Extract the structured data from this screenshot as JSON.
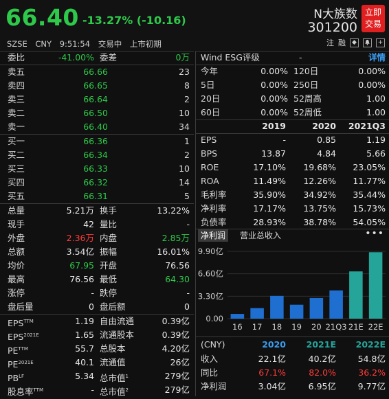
{
  "header": {
    "price": "66.40",
    "change": "-13.27% (-10.16)",
    "name": "N大族数",
    "code": "301200",
    "trade_btn": [
      "立即",
      "交易"
    ],
    "info": [
      "SZSE",
      "CNY",
      "9:51:54",
      "交易中",
      "上市初期"
    ],
    "tools": [
      "注",
      "融",
      "◆",
      "🔔",
      "+"
    ]
  },
  "left": {
    "weibi": {
      "label": "委比",
      "value": "-41.00%",
      "label2": "委差",
      "value2": "0万"
    },
    "asks": [
      {
        "label": "卖五",
        "price": "66.66",
        "vol": "23"
      },
      {
        "label": "卖四",
        "price": "66.65",
        "vol": "8"
      },
      {
        "label": "卖三",
        "price": "66.64",
        "vol": "2"
      },
      {
        "label": "卖二",
        "price": "66.50",
        "vol": "10"
      },
      {
        "label": "卖一",
        "price": "66.40",
        "vol": "34"
      }
    ],
    "bids": [
      {
        "label": "买一",
        "price": "66.36",
        "vol": "1"
      },
      {
        "label": "买二",
        "price": "66.34",
        "vol": "2"
      },
      {
        "label": "买三",
        "price": "66.33",
        "vol": "10"
      },
      {
        "label": "买四",
        "price": "66.32",
        "vol": "14"
      },
      {
        "label": "买五",
        "price": "66.31",
        "vol": "5"
      }
    ],
    "stats": [
      {
        "l1": "总量",
        "v1": "5.21万",
        "l2": "换手",
        "v2": "13.22%"
      },
      {
        "l1": "现手",
        "v1": "42",
        "l2": "量比",
        "v2": "-"
      },
      {
        "l1": "外盘",
        "v1": "2.36万",
        "l2": "内盘",
        "v2": "2.85万"
      },
      {
        "l1": "总额",
        "v1": "3.54亿",
        "l2": "振幅",
        "v2": "16.01%"
      },
      {
        "l1": "均价",
        "v1": "67.95",
        "l2": "开盘",
        "v2": "76.56"
      },
      {
        "l1": "最高",
        "v1": "76.56",
        "l2": "最低",
        "v2": "64.30"
      },
      {
        "l1": "涨停",
        "v1": "-",
        "l2": "跌停",
        "v2": "-"
      },
      {
        "l1": "盘后量",
        "v1": "0",
        "l2": "盘后额",
        "v2": "0"
      }
    ],
    "fundamentals": [
      {
        "l1": "EPS",
        "s1": "TTM",
        "v1": "1.19",
        "l2": "自由流通",
        "v2": "0.39亿"
      },
      {
        "l1": "EPS",
        "s1": "2021E",
        "v1": "1.65",
        "l2": "流通股本",
        "v2": "0.39亿"
      },
      {
        "l1": "PE",
        "s1": "TTM",
        "v1": "55.7",
        "l2": "总股本",
        "v2": "4.20亿"
      },
      {
        "l1": "PE",
        "s1": "2021E",
        "v1": "40.1",
        "l2": "流通值",
        "v2": "26亿"
      },
      {
        "l1": "PB",
        "s1": "LF",
        "v1": "5.34",
        "l2": "总市值",
        "s2": "1",
        "v2": "279亿"
      },
      {
        "l1": "股息率",
        "s1": "TTM",
        "v1": "-",
        "l2": "总市值",
        "s2": "2",
        "v2": "279亿"
      }
    ]
  },
  "right": {
    "esg": {
      "label": "Wind ESG评级",
      "value": "-",
      "detail": "详情"
    },
    "perf": [
      {
        "l1": "今年",
        "v1": "0.00%",
        "l2": "120日",
        "v2": "0.00%"
      },
      {
        "l1": "5日",
        "v1": "0.00%",
        "l2": "250日",
        "v2": "0.00%"
      },
      {
        "l1": "20日",
        "v1": "0.00%",
        "l2": "52周高",
        "v2": "1.00"
      },
      {
        "l1": "60日",
        "v1": "0.00%",
        "l2": "52周低",
        "v2": "1.00"
      }
    ],
    "fin_headers": [
      "2019",
      "2020",
      "2021Q3"
    ],
    "fin": [
      {
        "l": "EPS",
        "v": [
          "-",
          "0.85",
          "1.19"
        ]
      },
      {
        "l": "BPS",
        "v": [
          "13.87",
          "4.84",
          "5.66"
        ]
      },
      {
        "l": "ROE",
        "v": [
          "17.10%",
          "19.68%",
          "23.05%"
        ]
      },
      {
        "l": "ROA",
        "v": [
          "11.49%",
          "12.26%",
          "11.77%"
        ]
      },
      {
        "l": "毛利率",
        "v": [
          "35.90%",
          "34.92%",
          "35.44%"
        ]
      },
      {
        "l": "净利率",
        "v": [
          "17.17%",
          "13.75%",
          "15.73%"
        ]
      },
      {
        "l": "负债率",
        "v": [
          "28.93%",
          "38.78%",
          "54.05%"
        ]
      }
    ],
    "tabs": [
      "净利润",
      "营业总收入"
    ],
    "more": "•••",
    "forecast_headers": [
      "(CNY)",
      "2020",
      "2021E",
      "2022E"
    ],
    "forecast": [
      {
        "l": "收入",
        "v": [
          "22.1亿",
          "40.2亿",
          "54.8亿"
        ]
      },
      {
        "l": "同比",
        "v": [
          "67.1%",
          "82.0%",
          "36.2%"
        ]
      },
      {
        "l": "净利润",
        "v": [
          "3.04亿",
          "6.95亿",
          "9.77亿"
        ]
      }
    ]
  },
  "chart_data": {
    "type": "bar",
    "categories": [
      "16",
      "17",
      "18",
      "19",
      "20",
      "21Q3",
      "21E",
      "22E"
    ],
    "values": [
      0.7,
      1.55,
      3.35,
      2.05,
      3.04,
      4.15,
      6.95,
      9.77
    ],
    "yticks": [
      "9.90亿",
      "6.60亿",
      "3.30亿",
      "0.00"
    ],
    "ytick_values": [
      9.9,
      6.6,
      3.3,
      0
    ],
    "ylim": [
      0,
      9.9
    ],
    "colors": {
      "actual": "#1f6fd0",
      "estimate": "#25a59a"
    },
    "estimate_from_index": 6
  }
}
